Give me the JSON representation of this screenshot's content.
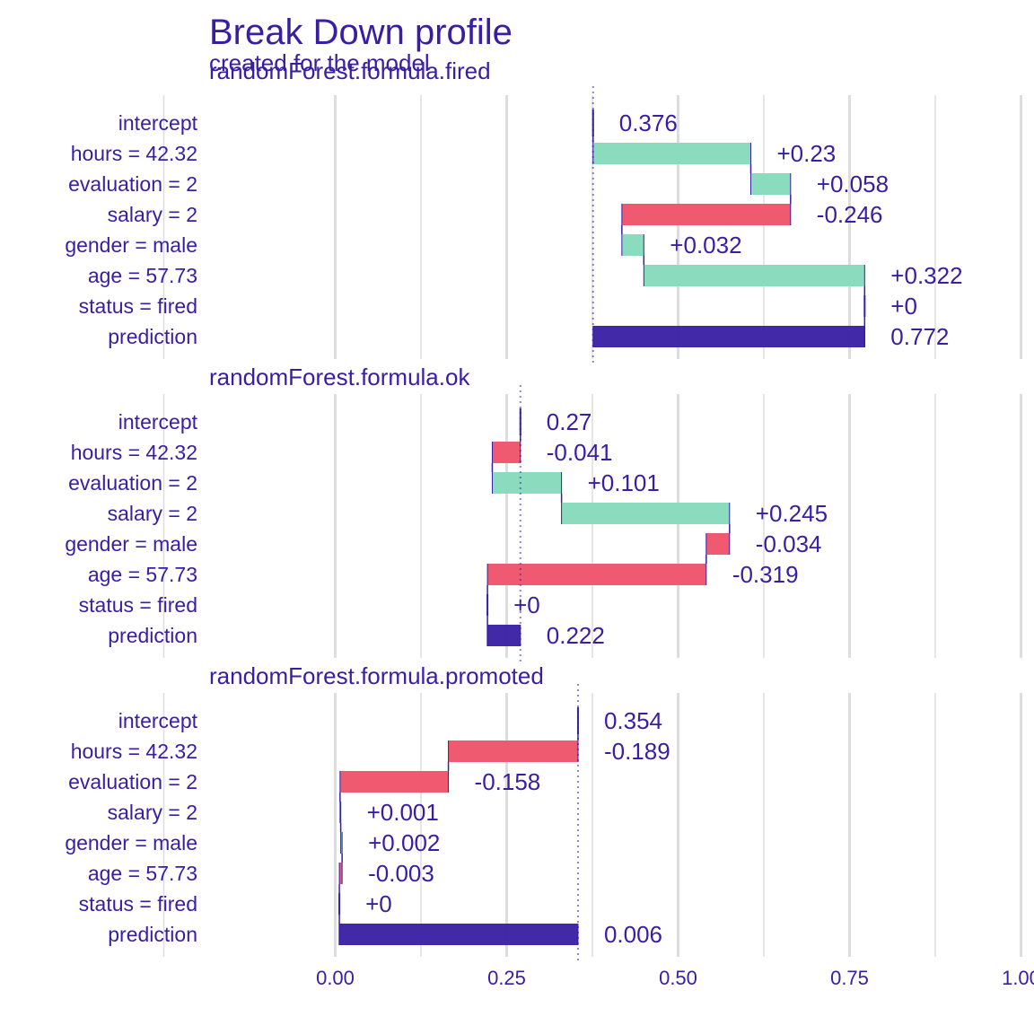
{
  "title": "Break Down profile",
  "subtitle": "created for the  model",
  "colors": {
    "text": "#371ea3",
    "positive": "#8bdcbe",
    "negative": "#f05a71",
    "prediction": "#371ea3",
    "grid": "#dddddd"
  },
  "chart_data": {
    "type": "bar",
    "subtype": "break-down waterfall",
    "xlim": [
      -0.25,
      1.0
    ],
    "x_ticks": [
      0.0,
      0.25,
      0.5,
      0.75,
      1.0
    ],
    "x_tick_labels": [
      "0.00",
      "0.25",
      "0.50",
      "0.75",
      "1.00"
    ],
    "grid": true,
    "panels": [
      {
        "label": "randomForest.formula.fired",
        "intercept": 0.376,
        "rows": [
          {
            "variable": "intercept",
            "kind": "intercept",
            "start": 0.376,
            "end": 0.376,
            "label": "0.376"
          },
          {
            "variable": "hours = 42.32",
            "kind": "positive",
            "start": 0.376,
            "end": 0.606,
            "label": "+0.23"
          },
          {
            "variable": "evaluation = 2",
            "kind": "positive",
            "start": 0.606,
            "end": 0.664,
            "label": "+0.058"
          },
          {
            "variable": "salary = 2",
            "kind": "negative",
            "start": 0.664,
            "end": 0.418,
            "label": "-0.246"
          },
          {
            "variable": "gender = male",
            "kind": "positive",
            "start": 0.418,
            "end": 0.45,
            "label": "+0.032"
          },
          {
            "variable": "age = 57.73",
            "kind": "positive",
            "start": 0.45,
            "end": 0.772,
            "label": "+0.322"
          },
          {
            "variable": "status = fired",
            "kind": "zero",
            "start": 0.772,
            "end": 0.772,
            "label": "+0"
          },
          {
            "variable": "prediction",
            "kind": "prediction",
            "start": 0.376,
            "end": 0.772,
            "label": "0.772"
          }
        ]
      },
      {
        "label": "randomForest.formula.ok",
        "intercept": 0.27,
        "rows": [
          {
            "variable": "intercept",
            "kind": "intercept",
            "start": 0.27,
            "end": 0.27,
            "label": "0.27"
          },
          {
            "variable": "hours = 42.32",
            "kind": "negative",
            "start": 0.27,
            "end": 0.229,
            "label": "-0.041"
          },
          {
            "variable": "evaluation = 2",
            "kind": "positive",
            "start": 0.229,
            "end": 0.33,
            "label": "+0.101"
          },
          {
            "variable": "salary = 2",
            "kind": "positive",
            "start": 0.33,
            "end": 0.575,
            "label": "+0.245"
          },
          {
            "variable": "gender = male",
            "kind": "negative",
            "start": 0.575,
            "end": 0.541,
            "label": "-0.034"
          },
          {
            "variable": "age = 57.73",
            "kind": "negative",
            "start": 0.541,
            "end": 0.222,
            "label": "-0.319"
          },
          {
            "variable": "status = fired",
            "kind": "zero",
            "start": 0.222,
            "end": 0.222,
            "label": "+0"
          },
          {
            "variable": "prediction",
            "kind": "prediction",
            "start": 0.27,
            "end": 0.222,
            "label": "0.222"
          }
        ]
      },
      {
        "label": "randomForest.formula.promoted",
        "intercept": 0.354,
        "rows": [
          {
            "variable": "intercept",
            "kind": "intercept",
            "start": 0.354,
            "end": 0.354,
            "label": "0.354"
          },
          {
            "variable": "hours = 42.32",
            "kind": "negative",
            "start": 0.354,
            "end": 0.165,
            "label": "-0.189"
          },
          {
            "variable": "evaluation = 2",
            "kind": "negative",
            "start": 0.165,
            "end": 0.007,
            "label": "-0.158"
          },
          {
            "variable": "salary = 2",
            "kind": "positive",
            "start": 0.007,
            "end": 0.008,
            "label": "+0.001"
          },
          {
            "variable": "gender = male",
            "kind": "positive",
            "start": 0.008,
            "end": 0.01,
            "label": "+0.002"
          },
          {
            "variable": "age = 57.73",
            "kind": "negative",
            "start": 0.01,
            "end": 0.006,
            "label": "-0.003"
          },
          {
            "variable": "status = fired",
            "kind": "zero",
            "start": 0.006,
            "end": 0.006,
            "label": "+0"
          },
          {
            "variable": "prediction",
            "kind": "prediction",
            "start": 0.354,
            "end": 0.006,
            "label": "0.006"
          }
        ]
      }
    ]
  }
}
